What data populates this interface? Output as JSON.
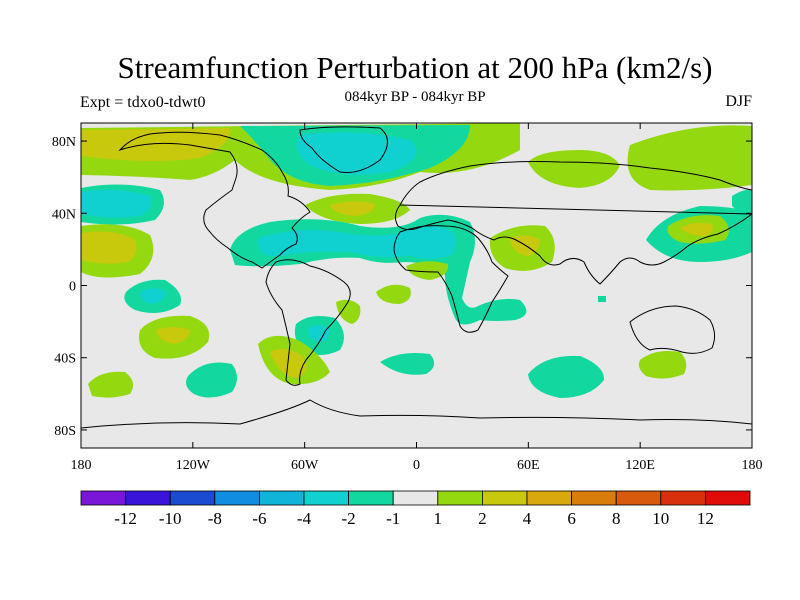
{
  "header": {
    "title": "Streamfunction Perturbation at 200 hPa (km2/s)",
    "subtitle": "084kyr BP - 084kyr BP",
    "left_label": "Expt = tdxo0-tdwt0",
    "right_label": "DJF"
  },
  "map": {
    "background_color": "#e8e8e8",
    "lat_ticks": [
      {
        "value": 80,
        "label": "80N"
      },
      {
        "value": 40,
        "label": "40N"
      },
      {
        "value": 0,
        "label": "0"
      },
      {
        "value": -40,
        "label": "40S"
      },
      {
        "value": -80,
        "label": "80S"
      }
    ],
    "lon_ticks": [
      {
        "value": -180,
        "label": "180"
      },
      {
        "value": -120,
        "label": "120W"
      },
      {
        "value": -60,
        "label": "60W"
      },
      {
        "value": 0,
        "label": "0"
      },
      {
        "value": 60,
        "label": "60E"
      },
      {
        "value": 120,
        "label": "120E"
      },
      {
        "value": 180,
        "label": "180"
      }
    ]
  },
  "colorbar": {
    "colors": [
      "#7a16d8",
      "#3a14d8",
      "#1a4bd0",
      "#108ce0",
      "#0fb4d8",
      "#10d0d0",
      "#12d8a0",
      "#e8e8e8",
      "#94d810",
      "#c8c80c",
      "#d8a80c",
      "#d87c0c",
      "#d85a0c",
      "#d8300c",
      "#e00c0c"
    ],
    "labels": [
      "-12",
      "-10",
      "-8",
      "-6",
      "-4",
      "-2",
      "-1",
      "1",
      "2",
      "4",
      "6",
      "8",
      "10",
      "12"
    ]
  }
}
